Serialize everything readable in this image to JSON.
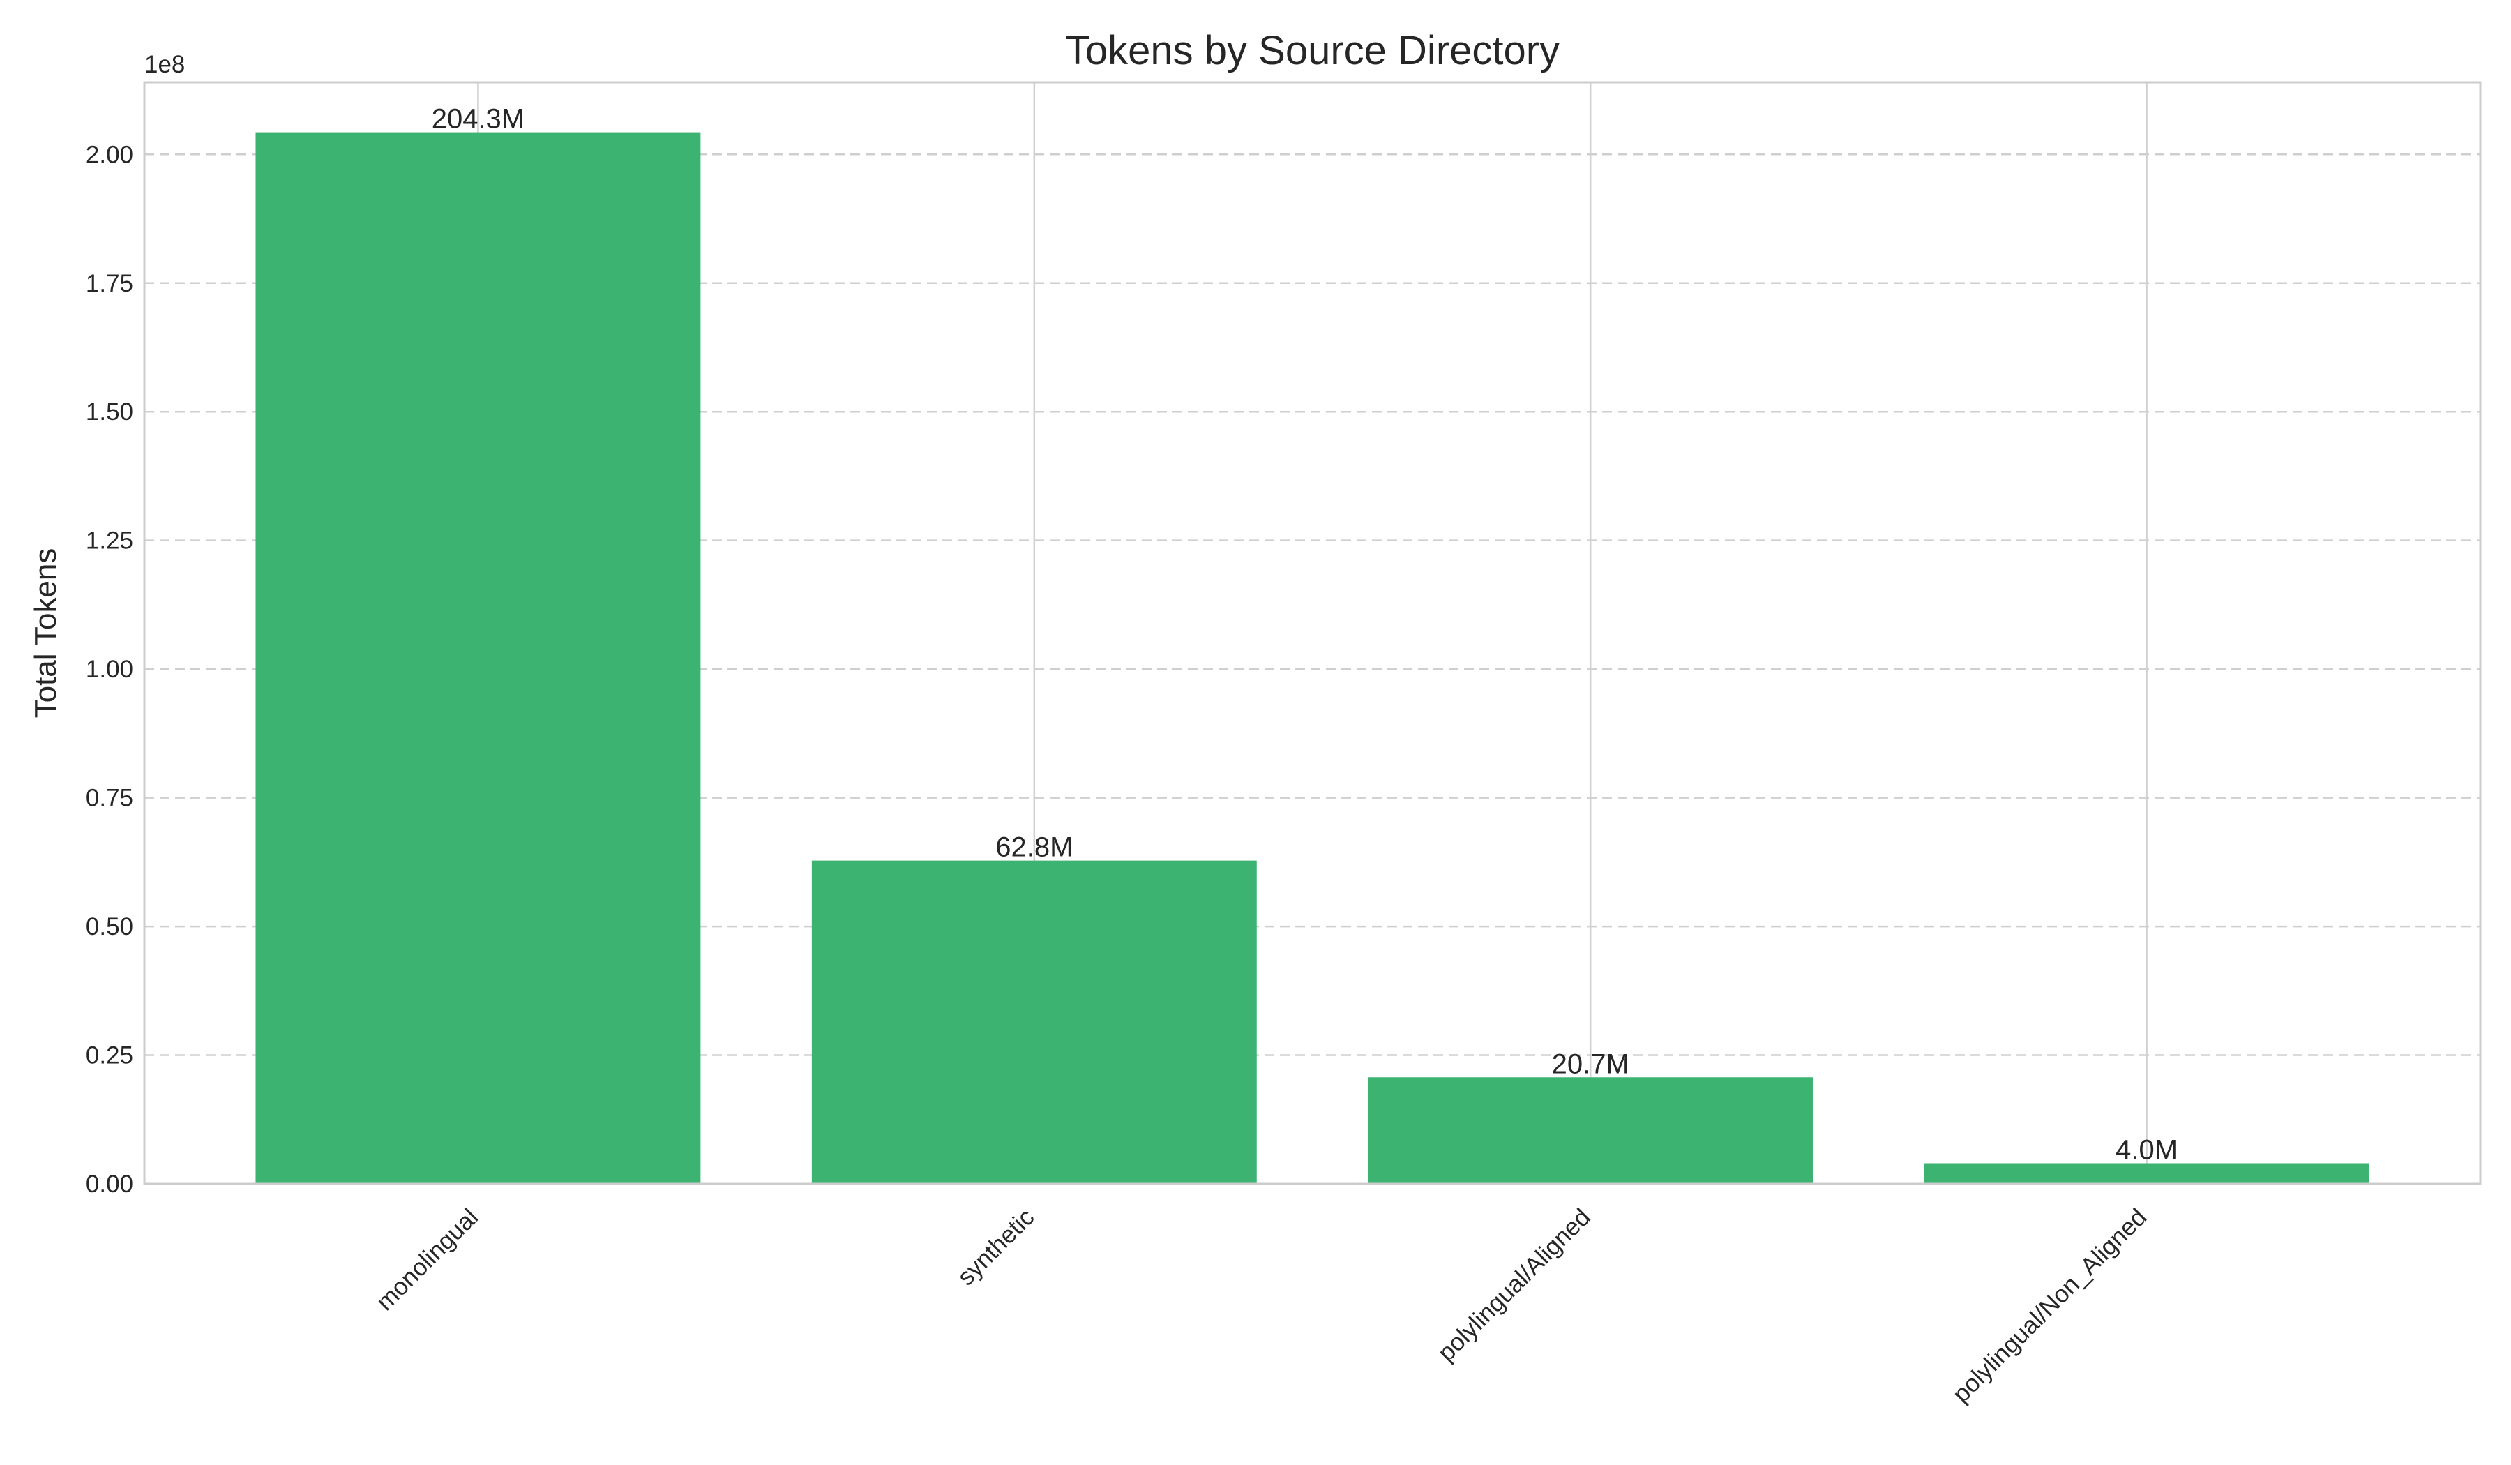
{
  "chart_data": {
    "type": "bar",
    "title": "Tokens by Source Directory",
    "xlabel": "",
    "ylabel": "Total Tokens",
    "y_offset_label": "1e8",
    "y_scale": 100000000,
    "categories": [
      "monolingual",
      "synthetic",
      "polylingual/Aligned",
      "polylingual/Non_Aligned"
    ],
    "values": [
      204300000,
      62800000,
      20700000,
      4000000
    ],
    "value_labels": [
      "204.3M",
      "62.8M",
      "20.7M",
      "4.0M"
    ],
    "ylim": [
      0,
      214000000
    ],
    "yticks": [
      0,
      25000000,
      50000000,
      75000000,
      100000000,
      125000000,
      150000000,
      175000000,
      200000000
    ],
    "ytick_labels": [
      "0.00",
      "0.25",
      "0.50",
      "0.75",
      "1.00",
      "1.25",
      "1.50",
      "1.75",
      "2.00"
    ],
    "bar_color": "#3cb371",
    "grid": true,
    "x_tick_rotation": 45
  }
}
